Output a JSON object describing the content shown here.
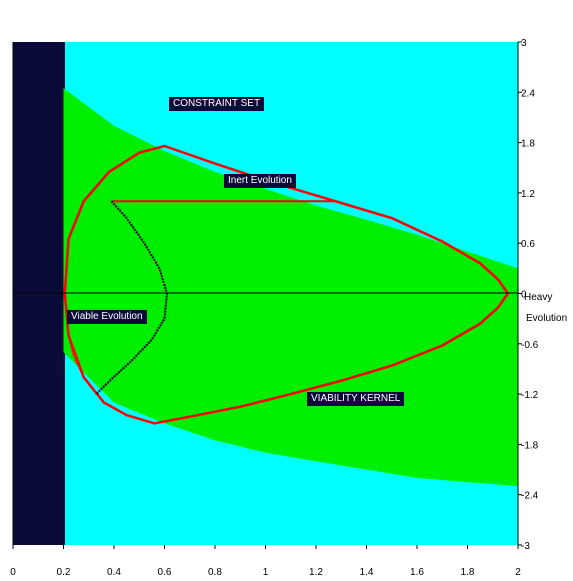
{
  "chart_data": {
    "type": "area",
    "xlim": [
      0,
      2
    ],
    "ylim": [
      -3,
      3
    ],
    "x_ticks": [
      "0",
      "0.2",
      "0.4",
      "0.6",
      "0.8",
      "1",
      "1.2",
      "1.4",
      "1.6",
      "1.8",
      "2"
    ],
    "y_ticks": [
      "3",
      "2.4",
      "1.8",
      "1.2",
      "0.6",
      "0",
      "-0.6",
      "-1.2",
      "-1.8",
      "-2.4",
      "-3"
    ],
    "y_tick_values": [
      3,
      2.4,
      1.8,
      1.2,
      0.6,
      0,
      -0.6,
      -1.2,
      -1.8,
      -2.4,
      -3
    ],
    "excluded_band": {
      "x_from": 0,
      "x_to": 0.2
    },
    "constraint_boundary": {
      "x": [
        0.2,
        0.4,
        0.6,
        0.8,
        1.0,
        1.2,
        1.4,
        1.6,
        1.8,
        2.0
      ],
      "y_upper": [
        2.45,
        2.0,
        1.7,
        1.45,
        1.25,
        1.05,
        0.88,
        0.7,
        0.5,
        0.3
      ],
      "y_lower": [
        -0.7,
        -1.3,
        -1.55,
        -1.75,
        -1.9,
        -2.0,
        -2.1,
        -2.2,
        -2.25,
        -2.3
      ]
    },
    "viability_kernel_boundary": {
      "x": [
        0.205,
        0.22,
        0.28,
        0.38,
        0.5,
        0.6,
        0.8,
        1.0,
        1.2,
        1.3,
        1.5,
        1.7,
        1.85,
        1.92,
        1.96,
        1.92,
        1.85,
        1.7,
        1.5,
        1.3,
        1.1,
        0.9,
        0.7,
        0.56,
        0.45,
        0.36,
        0.28,
        0.22,
        0.205
      ],
      "y": [
        0.0,
        0.65,
        1.1,
        1.45,
        1.68,
        1.76,
        1.55,
        1.35,
        1.17,
        1.08,
        0.9,
        0.62,
        0.36,
        0.17,
        0.0,
        -0.17,
        -0.36,
        -0.62,
        -0.86,
        -1.04,
        -1.2,
        -1.35,
        -1.47,
        -1.55,
        -1.45,
        -1.3,
        -1.0,
        -0.5,
        0.0
      ]
    },
    "heavy_evolution": {
      "x": [
        0.39,
        1.28,
        1.3,
        1.5,
        1.7,
        1.85,
        1.92,
        1.96,
        1.92,
        1.85,
        1.7,
        1.5,
        1.3,
        1.1,
        0.9,
        0.7,
        0.56
      ],
      "y": [
        1.1,
        1.1,
        1.08,
        0.9,
        0.62,
        0.36,
        0.17,
        0.0,
        -0.17,
        -0.36,
        -0.62,
        -0.86,
        -1.04,
        -1.2,
        -1.35,
        -1.47,
        -1.55
      ]
    },
    "viable_evolution": {
      "x": [
        0.39,
        0.45,
        0.52,
        0.58,
        0.61,
        0.6,
        0.55,
        0.47,
        0.38,
        0.33
      ],
      "y": [
        1.1,
        0.9,
        0.6,
        0.3,
        0.0,
        -0.3,
        -0.55,
        -0.8,
        -1.05,
        -1.2
      ]
    },
    "inner_closing_segment": {
      "x": [
        0.33,
        0.28,
        0.24,
        0.22
      ],
      "y": [
        -1.2,
        -1.0,
        -0.75,
        -0.5
      ]
    },
    "colors": {
      "background": "#00ffff",
      "excluded_band": "#0b0b3a",
      "constraint_fill": "#00ee00",
      "kernel_boundary": "#ff0000",
      "viable_evolution": "#000000",
      "axis": "#000000"
    }
  },
  "labels": {
    "constraint_set": "CONSTRAINT SET",
    "inert_evolution": "Inert  Evolution",
    "viable_evolution": "Viable Evolution",
    "viability_kernel": "VIABILITY KERNEL",
    "heavy": "Heavy",
    "evolution": "Evolution"
  }
}
